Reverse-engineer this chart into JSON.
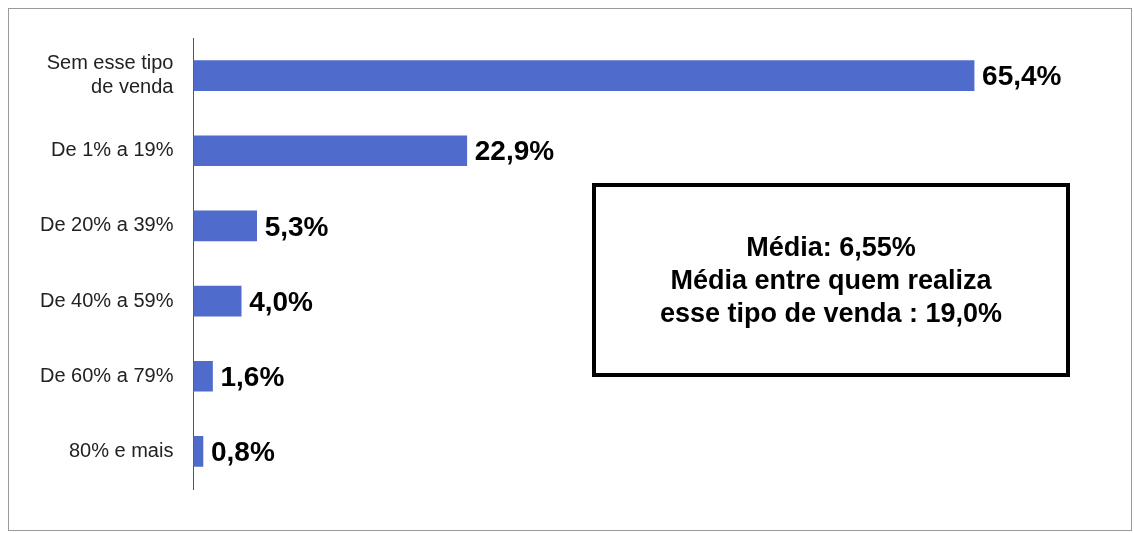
{
  "chart_data": {
    "type": "bar",
    "orientation": "horizontal",
    "categories": [
      "Sem esse tipo de venda",
      "De 1% a 19%",
      "De 20% a 39%",
      "De 40% a 59%",
      "De 60% a 79%",
      "80% e mais"
    ],
    "values": [
      65.4,
      22.9,
      5.3,
      4.0,
      1.6,
      0.8
    ],
    "value_labels": [
      "65,4%",
      "22,9%",
      "5,3%",
      "4,0%",
      "1,6%",
      "0,8%"
    ],
    "color": "#4f6bcc",
    "annotations": [
      "Média: 6,55%",
      "Média entre quem realiza esse tipo de venda : 19,0%"
    ]
  }
}
